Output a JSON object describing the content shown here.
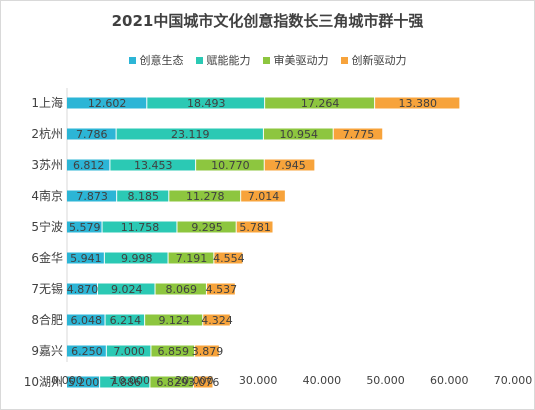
{
  "title": "2021中国城市文化创意指数长三角城市群十强",
  "chart_data": {
    "type": "bar",
    "orientation": "horizontal",
    "stacked": true,
    "title": "2021中国城市文化创意指数长三角城市群十强",
    "categories": [
      "1上海",
      "2杭州",
      "3苏州",
      "4南京",
      "5宁波",
      "6金华",
      "7无锡",
      "8合肥",
      "9嘉兴",
      "10湖州"
    ],
    "series": [
      {
        "name": "创意生态",
        "color": "#2cb5d6",
        "values": [
          12.602,
          7.786,
          6.812,
          7.873,
          5.579,
          5.941,
          4.87,
          6.048,
          6.25,
          5.2
        ]
      },
      {
        "name": "赋能能力",
        "color": "#2bc9b4",
        "values": [
          18.493,
          23.119,
          13.453,
          8.185,
          11.758,
          9.998,
          9.024,
          6.214,
          7.0,
          7.886
        ]
      },
      {
        "name": "审美驱动力",
        "color": "#8dc63f",
        "values": [
          17.264,
          10.954,
          10.77,
          11.278,
          9.295,
          7.191,
          8.069,
          9.124,
          6.859,
          6.829
        ]
      },
      {
        "name": "创新驱动力",
        "color": "#f7a33b",
        "values": [
          13.38,
          7.775,
          7.945,
          7.014,
          5.781,
          4.554,
          4.537,
          4.324,
          3.879,
          3.076
        ]
      }
    ],
    "value_labels": [
      [
        "12.602",
        "7.786",
        "6.812",
        "7.873",
        "5.579",
        "5.941",
        "4.870",
        "6.048",
        "6.250",
        "5.200"
      ],
      [
        "18.493",
        "23.119",
        "13.453",
        "8.185",
        "11.758",
        "9.998",
        "9.024",
        "6.214",
        "7.000",
        "7.886"
      ],
      [
        "17.264",
        "10.954",
        "10.770",
        "11.278",
        "9.295",
        "7.191",
        "8.069",
        "9.124",
        "6.859",
        "6.829"
      ],
      [
        "13.380",
        "7.775",
        "7.945",
        "7.014",
        "5.781",
        "4.554",
        "4.537",
        "4.324",
        "3.879",
        "3.076"
      ]
    ],
    "xlim": [
      0,
      70
    ],
    "x_ticks": [
      0,
      10,
      20,
      30,
      40,
      50,
      60,
      70
    ],
    "x_tick_labels": [
      "0.000",
      "10.000",
      "20.000",
      "30.000",
      "40.000",
      "50.000",
      "60.000",
      "70.000"
    ],
    "grid": false,
    "legend_position": "top"
  }
}
